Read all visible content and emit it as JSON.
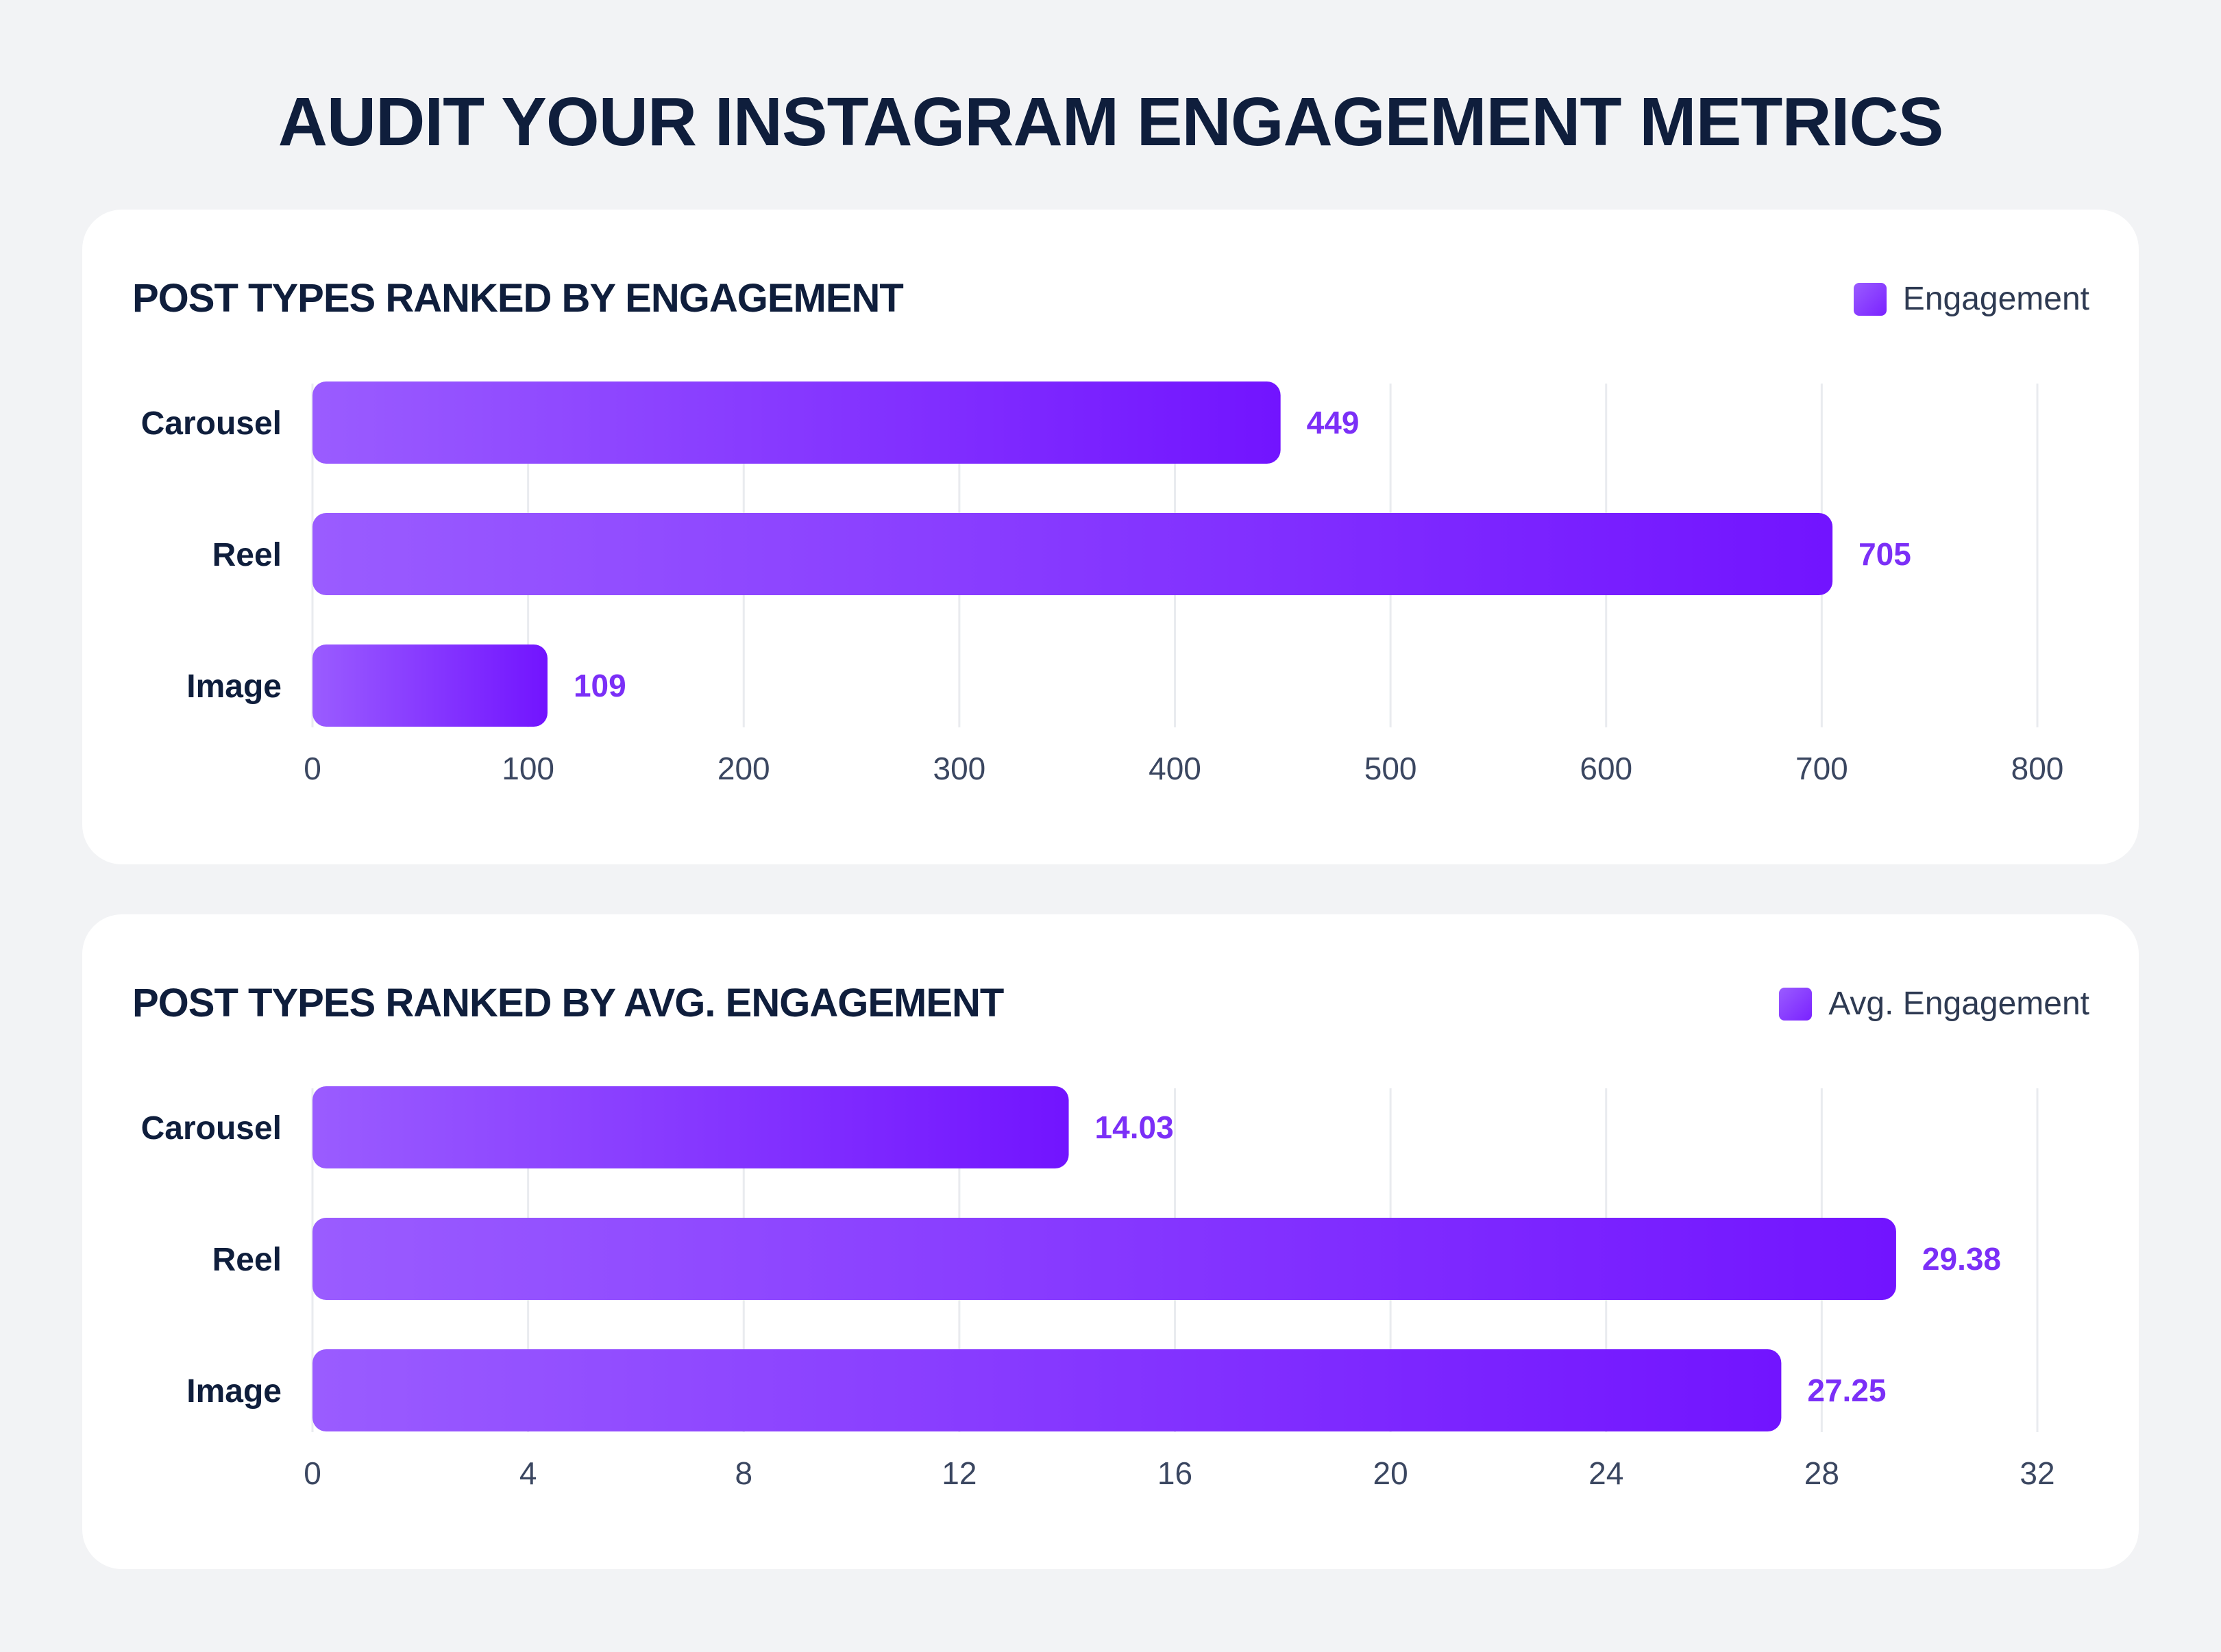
{
  "page_title": "AUDIT YOUR INSTAGRAM ENGAGEMENT METRICS",
  "colors": {
    "bar_start": "#9a5cff",
    "bar_end": "#7214ff",
    "value_label": "#7b2ff7",
    "title": "#0f1e3c",
    "grid": "#e9ebef"
  },
  "chart_data": [
    {
      "type": "bar",
      "orientation": "horizontal",
      "title": "POST TYPES RANKED BY ENGAGEMENT",
      "legend": "Engagement",
      "legend_position": "top-right",
      "categories": [
        "Carousel",
        "Reel",
        "Image"
      ],
      "values": [
        449,
        705,
        109
      ],
      "value_labels": [
        "449",
        "705",
        "109"
      ],
      "xlim": [
        0,
        800
      ],
      "xticks": [
        "0",
        "100",
        "200",
        "300",
        "400",
        "500",
        "600",
        "700",
        "800"
      ],
      "grid": true
    },
    {
      "type": "bar",
      "orientation": "horizontal",
      "title": "POST TYPES RANKED BY AVG. ENGAGEMENT",
      "legend": "Avg. Engagement",
      "legend_position": "top-right",
      "categories": [
        "Carousel",
        "Reel",
        "Image"
      ],
      "values": [
        14.03,
        29.38,
        27.25
      ],
      "value_labels": [
        "14.03",
        "29.38",
        "27.25"
      ],
      "xlim": [
        0,
        32
      ],
      "xticks": [
        "0",
        "4",
        "8",
        "12",
        "16",
        "20",
        "24",
        "28",
        "32"
      ],
      "grid": true
    }
  ]
}
